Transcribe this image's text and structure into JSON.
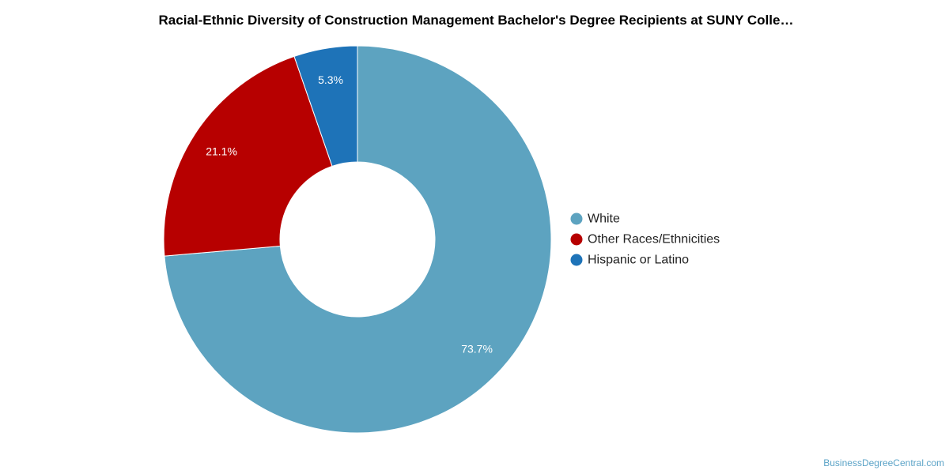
{
  "chart_data": {
    "type": "pie",
    "title": "Racial-Ethnic Diversity of Construction Management Bachelor's Degree Recipients at SUNY Colle…",
    "donut": true,
    "legend_position": "right",
    "slices": [
      {
        "label": "White",
        "value": 73.7,
        "value_label": "73.7%",
        "color": "#5da3c0"
      },
      {
        "label": "Other Races/Ethnicities",
        "value": 21.1,
        "value_label": "21.1%",
        "color": "#b70000"
      },
      {
        "label": "Hispanic or Latino",
        "value": 5.3,
        "value_label": "5.3%",
        "color": "#1e73b8"
      }
    ]
  },
  "watermark": "BusinessDegreeCentral.com"
}
